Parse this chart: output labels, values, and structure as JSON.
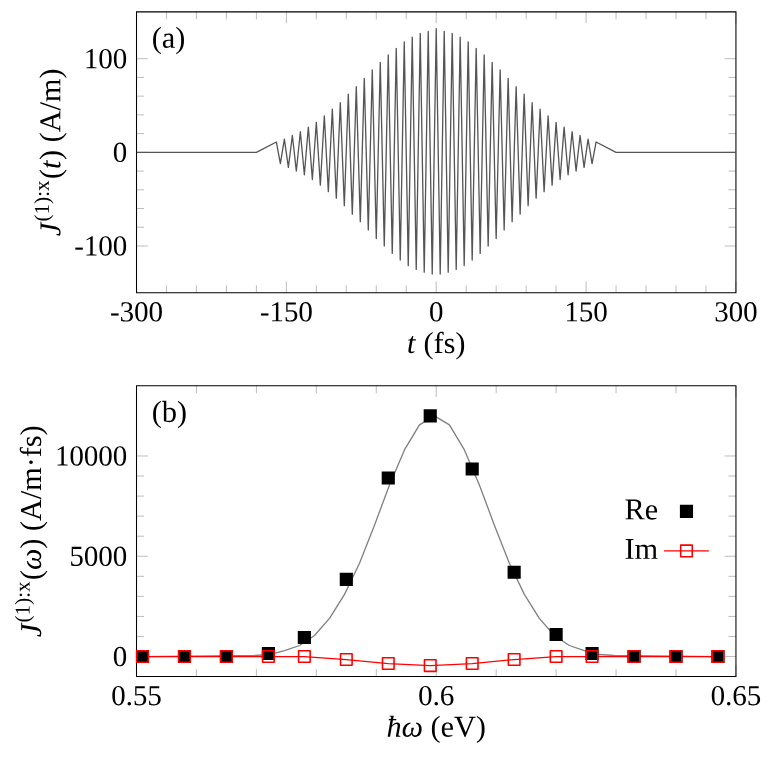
{
  "chart_data": [
    {
      "type": "line",
      "xlabel": "*t* (fs)",
      "ylabel": "*J*$^{(1):x}$(*t*) (A/m)",
      "annotations": [
        "(a)"
      ],
      "color": "#555555",
      "xlim": [
        -300,
        300
      ],
      "ylim": [
        -150,
        150
      ],
      "xticks": [
        -300,
        -150,
        0,
        150,
        300
      ],
      "yticks": [
        -100,
        0,
        100
      ],
      "x": [
        -300,
        -180,
        -160,
        -156,
        -152,
        -148,
        -144,
        -140,
        -136,
        -132,
        -128,
        -124,
        -120,
        -116,
        -112,
        -108,
        -104,
        -100,
        -96,
        -92,
        -88,
        -84,
        -80,
        -76,
        -72,
        -68,
        -64,
        -60,
        -56,
        -52,
        -48,
        -44,
        -40,
        -36,
        -32,
        -28,
        -24,
        -20,
        -16,
        -12,
        -8,
        -4,
        0,
        4,
        8,
        12,
        16,
        20,
        24,
        28,
        32,
        36,
        40,
        44,
        48,
        52,
        56,
        60,
        64,
        68,
        72,
        76,
        80,
        84,
        88,
        92,
        96,
        100,
        104,
        108,
        112,
        116,
        120,
        124,
        128,
        132,
        136,
        140,
        144,
        148,
        152,
        156,
        160,
        180,
        300
      ],
      "values": [
        0,
        0,
        11,
        -12,
        14,
        -16,
        18,
        -20,
        22,
        -24,
        27,
        -29,
        32,
        -35,
        39,
        -42,
        46,
        -49,
        53,
        -57,
        62,
        -66,
        70,
        -74,
        79,
        -83,
        88,
        -92,
        96,
        -100,
        104,
        -108,
        111,
        -115,
        118,
        -121,
        123,
        -125,
        127,
        -128,
        129,
        -130,
        132,
        -130,
        129,
        -128,
        127,
        -125,
        123,
        -121,
        118,
        -115,
        111,
        -108,
        104,
        -100,
        96,
        -92,
        88,
        -83,
        79,
        -74,
        70,
        -66,
        62,
        -57,
        53,
        -49,
        46,
        -42,
        39,
        -35,
        32,
        -29,
        27,
        -24,
        22,
        -20,
        18,
        -16,
        14,
        -12,
        11,
        0,
        0
      ]
    },
    {
      "type": "scatter",
      "xlabel": "*ħω* (eV)",
      "ylabel": "*J*$^{(1):x}$(*ω*) (A/m·fs)",
      "annotations": [
        "(b)"
      ],
      "legend": "right",
      "xlim": [
        0.55,
        0.65
      ],
      "ylim": [
        -1000,
        13500
      ],
      "xticks": [
        0.55,
        0.6,
        0.65
      ],
      "yticks": [
        0,
        5000,
        10000
      ],
      "series": [
        {
          "type": "line",
          "color": "#808080",
          "x": [
            0.551,
            0.5697,
            0.5722,
            0.5747,
            0.5772,
            0.5797,
            0.5822,
            0.5847,
            0.5872,
            0.5897,
            0.5922,
            0.5947,
            0.5972,
            0.5997,
            0.6022,
            0.6047,
            0.6072,
            0.6097,
            0.6122,
            0.6147,
            0.6172,
            0.6197,
            0.6222,
            0.6247,
            0.6272,
            0.6297,
            0.647
          ],
          "values": [
            0,
            50,
            100,
            300,
            550,
            1050,
            1900,
            3100,
            4650,
            6550,
            8550,
            10300,
            11550,
            12000,
            11550,
            10300,
            8550,
            6550,
            4650,
            3100,
            1900,
            1050,
            550,
            300,
            100,
            50,
            0
          ]
        },
        {
          "name": "Re",
          "type": "scatter",
          "marker": "square",
          "color": "#000000",
          "x": [
            0.551,
            0.558,
            0.565,
            0.572,
            0.578,
            0.585,
            0.592,
            0.599,
            0.606,
            0.613,
            0.62,
            0.626,
            0.633,
            0.64,
            0.647
          ],
          "values": [
            0,
            0,
            0,
            150,
            950,
            3850,
            8900,
            12000,
            9350,
            4200,
            1100,
            150,
            0,
            0,
            0
          ]
        },
        {
          "name": "Im",
          "type": "line",
          "marker": "square",
          "color": "#ff0000",
          "x": [
            0.551,
            0.558,
            0.565,
            0.572,
            0.578,
            0.585,
            0.592,
            0.599,
            0.606,
            0.613,
            0.62,
            0.626,
            0.633,
            0.64,
            0.647
          ],
          "values": [
            0,
            0,
            0,
            0,
            0,
            -150,
            -350,
            -450,
            -350,
            -150,
            0,
            0,
            0,
            0,
            0
          ]
        }
      ]
    }
  ]
}
